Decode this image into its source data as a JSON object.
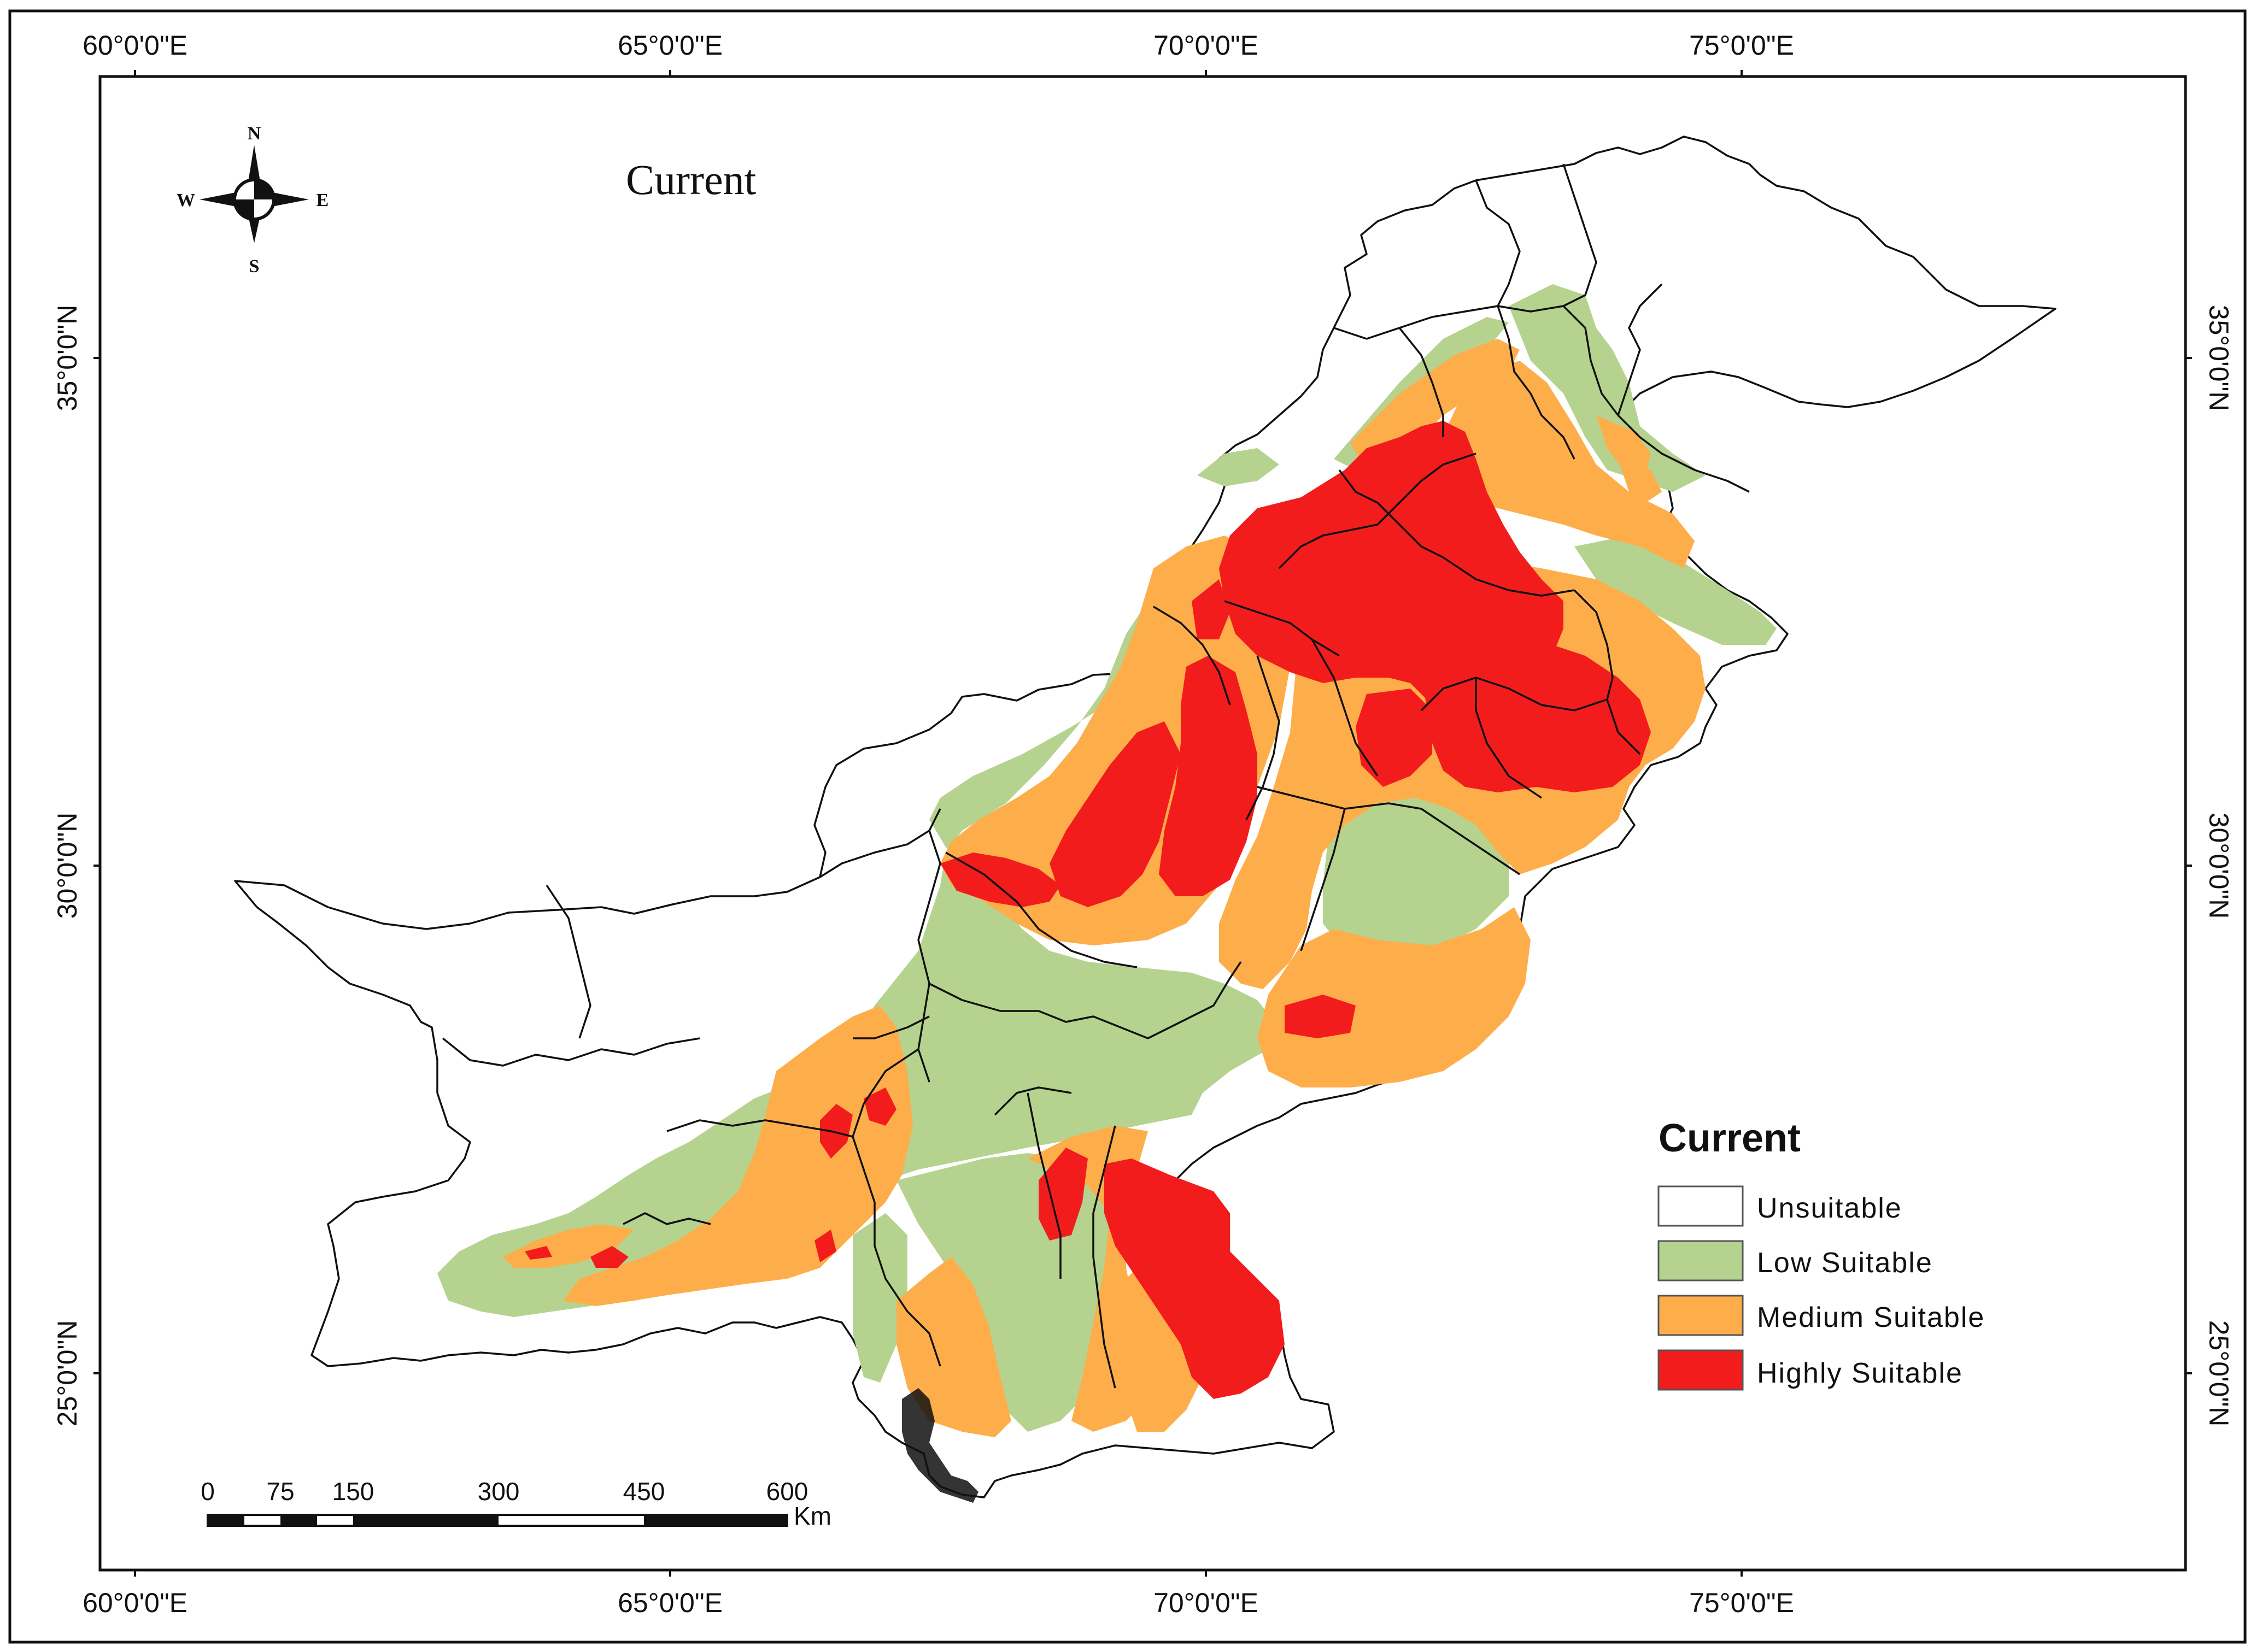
{
  "map": {
    "title": "Current",
    "lon_labels": [
      "60°0'0\"E",
      "65°0'0\"E",
      "70°0'0\"E",
      "75°0'0\"E"
    ],
    "lat_labels": [
      "35°0'0\"N",
      "30°0'0\"N",
      "25°0'0\"N"
    ],
    "compass": {
      "north": "N",
      "south": "S",
      "east": "E",
      "west": "W"
    },
    "legend": {
      "title": "Current",
      "items": [
        {
          "label": "Unsuitable",
          "color": "#ffffff"
        },
        {
          "label": "Low Suitable",
          "color": "#b5d38f"
        },
        {
          "label": "Medium Suitable",
          "color": "#fdae4b"
        },
        {
          "label": "Highly Suitable",
          "color": "#f21c1c"
        }
      ]
    },
    "scale_bar": {
      "ticks": [
        "0",
        "75",
        "150",
        "300",
        "450",
        "600"
      ],
      "unit": "Km"
    }
  }
}
